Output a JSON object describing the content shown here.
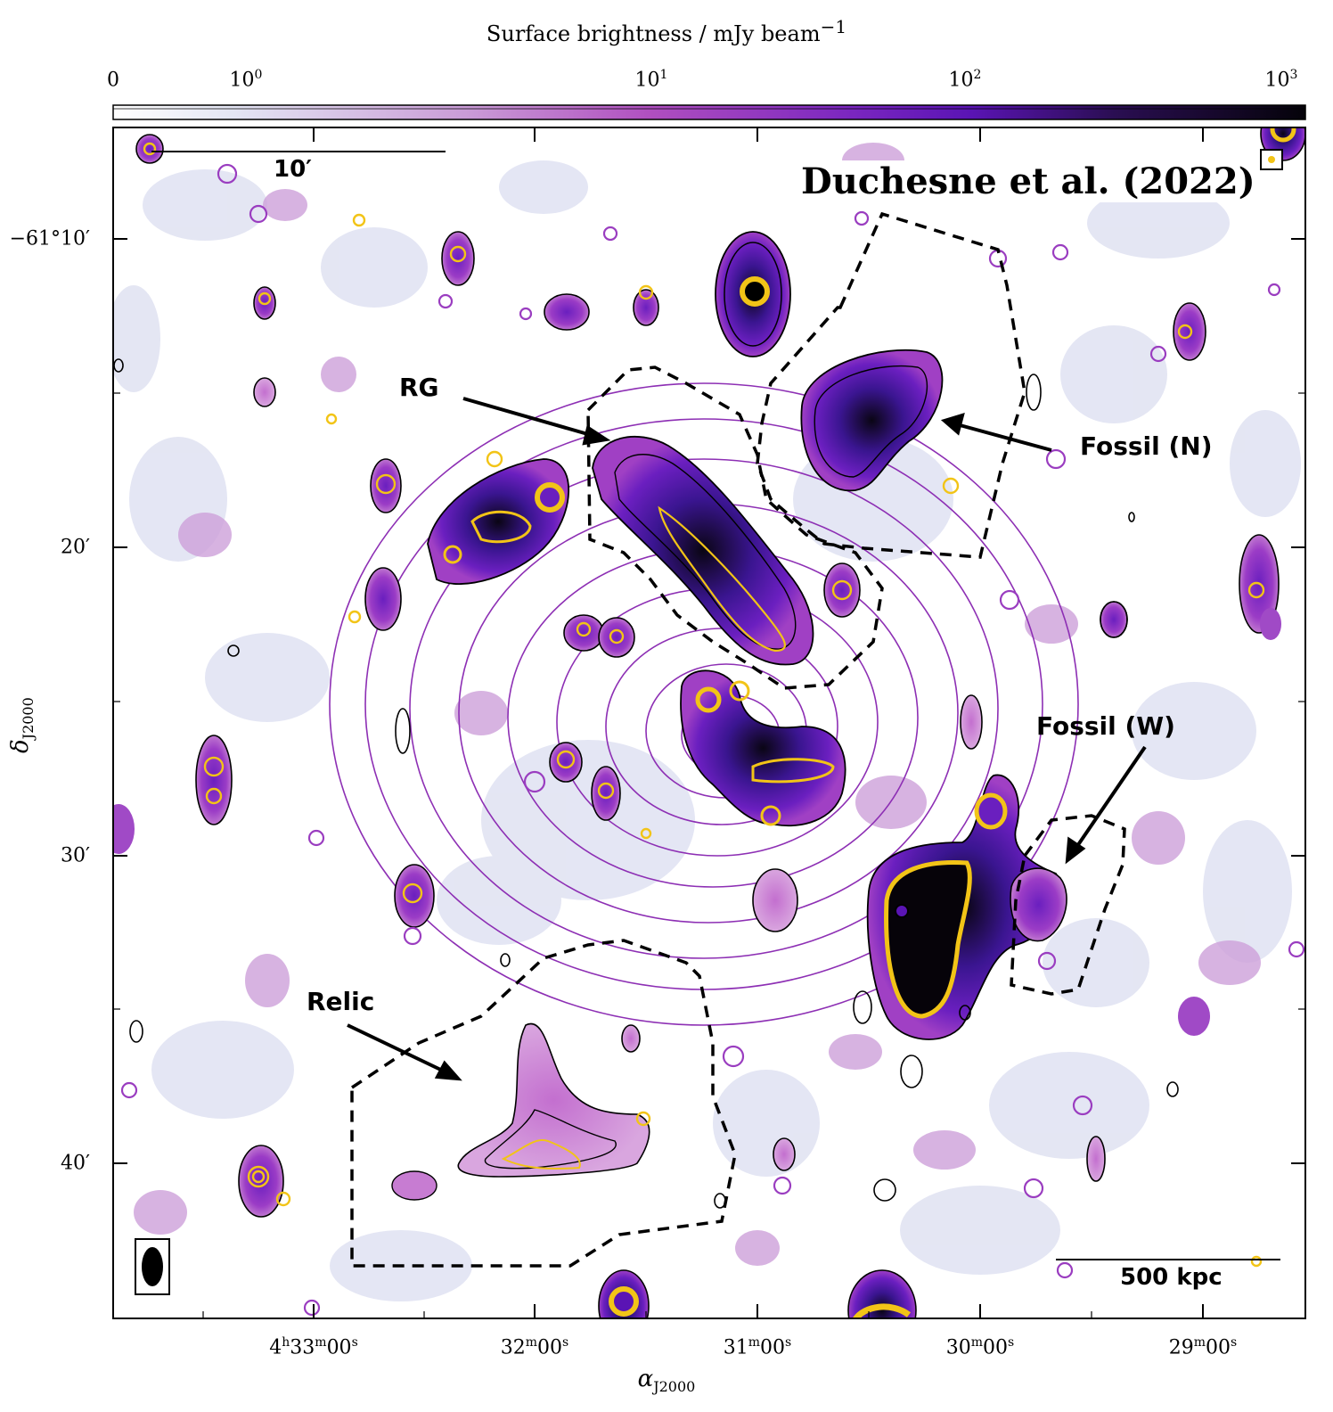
{
  "colorbar": {
    "title": "Surface brightness / mJy beam",
    "title_exp": "−1",
    "ticks": [
      {
        "base": "0",
        "exp": ""
      },
      {
        "base": "10",
        "exp": "0"
      },
      {
        "base": "10",
        "exp": "1"
      },
      {
        "base": "10",
        "exp": "2"
      },
      {
        "base": "10",
        "exp": "3"
      }
    ]
  },
  "axes": {
    "x_label": "α",
    "x_sub": "J2000",
    "y_label": "δ",
    "y_sub": "J2000",
    "x_ticks": [
      {
        "h": "4",
        "m": "33",
        "s": "00"
      },
      {
        "h": "",
        "m": "32",
        "s": "00"
      },
      {
        "h": "",
        "m": "31",
        "s": "00"
      },
      {
        "h": "",
        "m": "30",
        "s": "00"
      },
      {
        "h": "",
        "m": "29",
        "s": "00"
      }
    ],
    "y_ticks": [
      "−61°10′",
      "20′",
      "30′",
      "40′"
    ]
  },
  "annotations": {
    "credit": "Duchesne et al. (2022)",
    "scale_top": "10′",
    "scale_bottom": "500 kpc",
    "rg": "RG",
    "fossil_n": "Fossil (N)",
    "fossil_w": "Fossil (W)",
    "relic": "Relic"
  },
  "colors": {
    "cmap_low": "#e8eaf6",
    "cmap_mid": "#b04fc0",
    "cmap_high": "#5a14b4",
    "cmap_top": "#0a0514",
    "contour_black": "#000000",
    "contour_yellow": "#f2c417",
    "contour_purple": "#8d2fb4"
  }
}
